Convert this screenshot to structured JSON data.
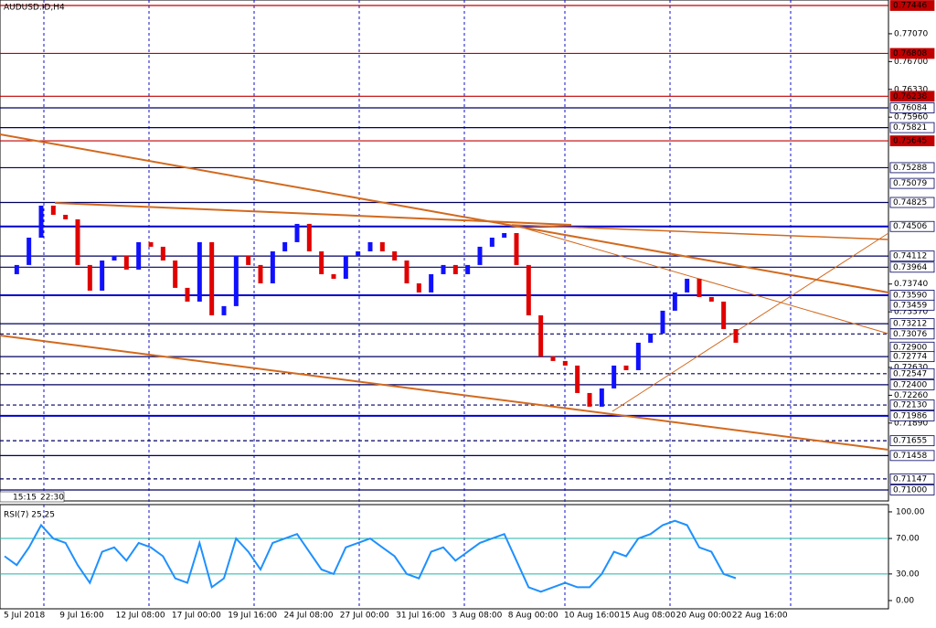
{
  "chart_data": [
    {
      "type": "candlestick",
      "title": "AUDUSD.ID,H4",
      "ylim": [
        0.70854,
        0.77519
      ],
      "close": [
        0.73871,
        0.73993,
        0.74357,
        0.74783,
        0.74661,
        0.74601,
        0.73993,
        0.73652,
        0.74053,
        0.74114,
        0.73932,
        0.74297,
        0.74236,
        0.74053,
        0.73689,
        0.73506,
        0.74297,
        0.73324,
        0.73446,
        0.74114,
        0.73993,
        0.73749,
        0.74175,
        0.74297,
        0.7454,
        0.74175,
        0.73871,
        0.7381,
        0.74114,
        0.74175,
        0.74297,
        0.74175,
        0.74053,
        0.73749,
        0.73628,
        0.73871,
        0.73993,
        0.73871,
        0.73993,
        0.74236,
        0.74357,
        0.74418,
        0.73993,
        0.73324,
        0.72777,
        0.72716,
        0.72655,
        0.7229,
        0.72108,
        0.72351,
        0.72655,
        0.72594,
        0.72959,
        0.73081,
        0.73385,
        0.73628,
        0.7381,
        0.73567,
        0.73506,
        0.73141,
        0.72959
      ],
      "up_color": "#1010ff",
      "down_color": "#e00000",
      "yticks": [
        {
          "value": 0.7707,
          "label": "0.77070"
        },
        {
          "value": 0.767,
          "label": "0.76700"
        },
        {
          "value": 0.7633,
          "label": "0.76330"
        },
        {
          "value": 0.7596,
          "label": "0.75960"
        },
        {
          "value": 0.7374,
          "label": "0.73740"
        },
        {
          "value": 0.7337,
          "label": "0.73370"
        },
        {
          "value": 0.7263,
          "label": "0.72630"
        },
        {
          "value": 0.7226,
          "label": "0.72260"
        },
        {
          "value": 0.7189,
          "label": "0.71890"
        }
      ],
      "levels": [
        {
          "value": 0.77446,
          "style": "red"
        },
        {
          "value": 0.76808,
          "style": "red"
        },
        {
          "value": 0.76238,
          "style": "red"
        },
        {
          "value": 0.76084,
          "style": "solid"
        },
        {
          "value": 0.75821,
          "style": "solid"
        },
        {
          "value": 0.75645,
          "style": "red"
        },
        {
          "value": 0.75288,
          "style": "solid"
        },
        {
          "value": 0.75079,
          "style": "none"
        },
        {
          "value": 0.74825,
          "style": "solid"
        },
        {
          "value": 0.74506,
          "style": "bold"
        },
        {
          "value": 0.74112,
          "style": "solid"
        },
        {
          "value": 0.73964,
          "style": "solid"
        },
        {
          "value": 0.7359,
          "label": "0.73590",
          "style": "bold"
        },
        {
          "value": 0.73459,
          "style": "none"
        },
        {
          "value": 0.73212,
          "style": "solid"
        },
        {
          "value": 0.73076,
          "style": "dashed"
        },
        {
          "value": 0.729,
          "label": "0.72900",
          "style": "none"
        },
        {
          "value": 0.72774,
          "style": "solid"
        },
        {
          "value": 0.72547,
          "style": "dashed"
        },
        {
          "value": 0.724,
          "label": "0.72400",
          "style": "solid"
        },
        {
          "value": 0.7213,
          "label": "0.72130",
          "style": "dashed"
        },
        {
          "value": 0.71986,
          "style": "bold"
        },
        {
          "value": 0.71655,
          "style": "dashed"
        },
        {
          "value": 0.71458,
          "style": "solid"
        },
        {
          "value": 0.71147,
          "style": "dashed"
        },
        {
          "value": 0.71,
          "label": "0.71000",
          "style": "solid"
        }
      ],
      "time_markers": [
        "15:15",
        "22:30"
      ]
    },
    {
      "type": "line",
      "title": "RSI(7) 25.25",
      "values": [
        50,
        40,
        60,
        85,
        70,
        65,
        40,
        20,
        55,
        60,
        45,
        65,
        60,
        50,
        25,
        20,
        65,
        15,
        25,
        70,
        55,
        35,
        65,
        70,
        75,
        55,
        35,
        30,
        60,
        65,
        70,
        60,
        50,
        30,
        25,
        55,
        60,
        45,
        55,
        65,
        70,
        75,
        45,
        15,
        10,
        15,
        20,
        15,
        15,
        30,
        55,
        50,
        70,
        75,
        85,
        90,
        85,
        60,
        55,
        30,
        25.25
      ],
      "color": "#1e90ff",
      "ylim": [
        -9.3,
        108.2
      ],
      "yticks": [
        {
          "value": 100,
          "label": "100.00"
        },
        {
          "value": 70,
          "label": "70.00"
        },
        {
          "value": 30,
          "label": "30.00"
        },
        {
          "value": 0,
          "label": "0.00"
        }
      ],
      "levels": [
        70,
        30
      ]
    },
    {
      "type": "time_axis",
      "categories": [
        "5 Jul 2018",
        "9 Jul 16:00",
        "12 Jul 08:00",
        "17 Jul 00:00",
        "19 Jul 16:00",
        "24 Jul 08:00",
        "27 Jul 00:00",
        "31 Jul 16:00",
        "3 Aug 08:00",
        "8 Aug 00:00",
        "10 Aug 16:00",
        "15 Aug 08:00",
        "20 Aug 00:00",
        "22 Aug 16:00"
      ]
    }
  ]
}
